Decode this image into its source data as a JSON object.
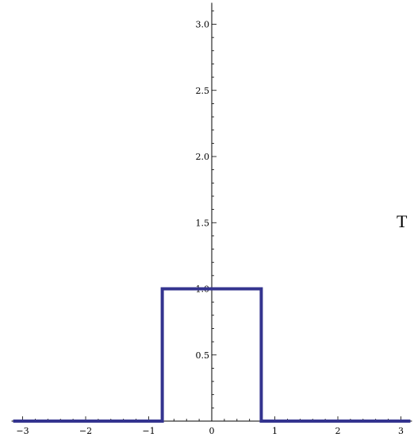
{
  "chart_data": {
    "type": "line",
    "title": "",
    "xlabel": "",
    "ylabel": "",
    "xlim": [
      -3.15,
      3.15
    ],
    "ylim": [
      0,
      3.15
    ],
    "x_ticks": [
      -3,
      -2,
      -1,
      0,
      1,
      2,
      3
    ],
    "x_tick_labels": [
      "−3",
      "−2",
      "−1",
      "0",
      "1",
      "2",
      "3"
    ],
    "y_ticks": [
      0.5,
      1.0,
      1.5,
      2.0,
      2.5,
      3.0
    ],
    "y_tick_labels": [
      "0.5",
      "1.0",
      "1.5",
      "2.0",
      "2.5",
      "3.0"
    ],
    "grid": false,
    "series": [
      {
        "color": "#34348f",
        "x": [
          -3.15,
          -0.785,
          -0.785,
          0.785,
          0.785,
          3.15
        ],
        "y": [
          0,
          0,
          1,
          1,
          0,
          0
        ]
      }
    ],
    "annotations": [
      {
        "text": "T"
      }
    ]
  }
}
